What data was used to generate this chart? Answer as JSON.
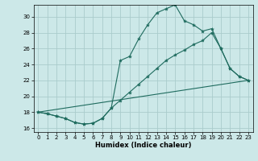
{
  "xlabel": "Humidex (Indice chaleur)",
  "bg_color": "#cce8e8",
  "grid_color": "#aacccc",
  "line_color": "#1e6b5e",
  "xlim": [
    -0.5,
    23.5
  ],
  "ylim": [
    15.5,
    31.5
  ],
  "xticks": [
    0,
    1,
    2,
    3,
    4,
    5,
    6,
    7,
    8,
    9,
    10,
    11,
    12,
    13,
    14,
    15,
    16,
    17,
    18,
    19,
    20,
    21,
    22,
    23
  ],
  "yticks": [
    16,
    18,
    20,
    22,
    24,
    26,
    28,
    30
  ],
  "c1x": [
    0,
    1,
    2,
    3,
    4,
    5,
    6,
    7,
    8,
    9,
    10,
    11,
    12,
    13,
    14,
    15,
    16,
    17,
    18,
    19,
    20,
    21,
    22,
    23
  ],
  "c1y": [
    18,
    17.8,
    17.5,
    17.2,
    16.7,
    16.5,
    16.6,
    17.2,
    18.5,
    24.5,
    25.0,
    27.2,
    29.0,
    30.5,
    31.0,
    31.5,
    29.5,
    29.0,
    28.2,
    28.5,
    26.0,
    23.5,
    22.5,
    22.0
  ],
  "c2x": [
    0,
    1,
    2,
    3,
    4,
    5,
    6,
    7,
    8,
    9,
    10,
    11,
    12,
    13,
    14,
    15,
    16,
    17,
    18,
    19,
    20,
    21,
    22,
    23
  ],
  "c2y": [
    18,
    17.8,
    17.5,
    17.2,
    16.7,
    16.5,
    16.6,
    17.2,
    18.5,
    19.5,
    20.5,
    21.5,
    22.5,
    23.5,
    24.5,
    25.2,
    25.8,
    26.5,
    27.0,
    28.0,
    26.0,
    23.5,
    22.5,
    22.0
  ],
  "c3x": [
    0,
    23
  ],
  "c3y": [
    18,
    22.0
  ]
}
